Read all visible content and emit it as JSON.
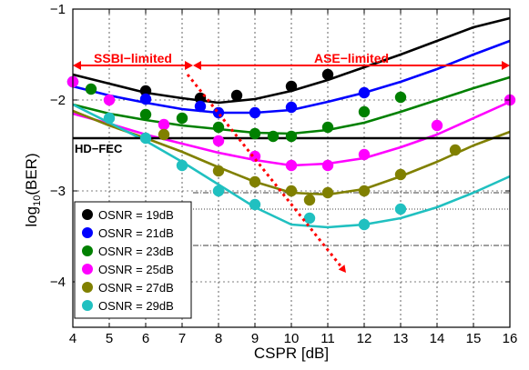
{
  "chart_data": {
    "type": "scatter",
    "xlabel": "CSPR [dB]",
    "ylabel": "log",
    "ylabel_sub": "10",
    "ylabel_tail": "(BER)",
    "xlim": [
      4,
      16
    ],
    "ylim": [
      -4.5,
      -1
    ],
    "x_ticks": [
      4,
      5,
      6,
      7,
      8,
      9,
      10,
      11,
      12,
      13,
      14,
      15,
      16
    ],
    "y_ticks": [
      -4,
      -3,
      -2,
      -1
    ],
    "y_tick_labels": [
      "−4",
      "−3",
      "−2",
      "−1"
    ],
    "grid": true,
    "legend_position": "lower-left",
    "hd_fec": {
      "label": "HD−FEC",
      "y": -2.42,
      "color": "#000000"
    },
    "regions": [
      {
        "label": "SSBI−limited",
        "x_start": 4,
        "x_end": 7.3,
        "y": -1.62,
        "color": "#ff0000"
      },
      {
        "label": "ASE−limited",
        "x_start": 7.3,
        "x_end": 16,
        "y": -1.62,
        "color": "#ff0000"
      }
    ],
    "optimum_trend": {
      "color": "#ff0000",
      "x": [
        7.15,
        11.5
      ],
      "y": [
        -1.72,
        -3.9
      ]
    },
    "reference_lines": [
      {
        "style": "dash-dot",
        "y": -2.42,
        "x_start": 7.3,
        "x_end": 16
      },
      {
        "style": "dash-dot",
        "y": -3.02,
        "x_start": 7.3,
        "x_end": 16
      },
      {
        "style": "dash-dot",
        "y": -3.6,
        "x_start": 7.3,
        "x_end": 16
      },
      {
        "style": "dotted",
        "y": -3.2,
        "x_start": 7.3,
        "x_end": 16
      }
    ],
    "series": [
      {
        "name": "OSNR = 19dB",
        "color": "#000000",
        "points": {
          "x": [
            6,
            7.5,
            8.5,
            10,
            11
          ],
          "y": [
            -1.9,
            -1.98,
            -1.95,
            -1.85,
            -1.72
          ]
        },
        "fit": {
          "x": [
            4,
            5,
            6,
            7,
            8,
            9,
            10,
            11,
            12,
            13,
            14,
            15,
            16
          ],
          "y": [
            -1.72,
            -1.82,
            -1.92,
            -1.98,
            -2.03,
            -1.99,
            -1.9,
            -1.78,
            -1.64,
            -1.5,
            -1.35,
            -1.2,
            -1.1
          ]
        }
      },
      {
        "name": "OSNR = 21dB",
        "color": "#0000ff",
        "points": {
          "x": [
            4,
            6,
            7.5,
            8,
            9,
            10,
            12
          ],
          "y": [
            -1.8,
            -1.99,
            -2.07,
            -2.14,
            -2.14,
            -2.08,
            -1.92
          ]
        },
        "fit": {
          "x": [
            4,
            5,
            6,
            7,
            8,
            9,
            10,
            11,
            12,
            13,
            14,
            15,
            16
          ],
          "y": [
            -1.85,
            -1.95,
            -2.03,
            -2.1,
            -2.14,
            -2.14,
            -2.11,
            -2.02,
            -1.92,
            -1.8,
            -1.66,
            -1.5,
            -1.35
          ]
        }
      },
      {
        "name": "OSNR = 23dB",
        "color": "#008000",
        "points": {
          "x": [
            4.5,
            6,
            7,
            8,
            9,
            9.5,
            10,
            11,
            12,
            13
          ],
          "y": [
            -1.88,
            -2.16,
            -2.2,
            -2.3,
            -2.37,
            -2.4,
            -2.4,
            -2.3,
            -2.13,
            -1.97
          ]
        },
        "fit": {
          "x": [
            4,
            5,
            6,
            7,
            8,
            9,
            10,
            11,
            12,
            13,
            14,
            15,
            16
          ],
          "y": [
            -2.05,
            -2.15,
            -2.22,
            -2.28,
            -2.32,
            -2.36,
            -2.37,
            -2.33,
            -2.25,
            -2.13,
            -2.0,
            -1.87,
            -1.75
          ]
        }
      },
      {
        "name": "OSNR = 25dB",
        "color": "#ff00ff",
        "points": {
          "x": [
            4,
            5,
            6.5,
            8,
            9,
            10,
            11,
            12,
            14,
            16
          ],
          "y": [
            -1.8,
            -2.0,
            -2.27,
            -2.45,
            -2.62,
            -2.72,
            -2.72,
            -2.6,
            -2.28,
            -2.0
          ]
        },
        "fit": {
          "x": [
            4,
            5,
            6,
            7,
            8,
            9,
            10,
            11,
            12,
            13,
            14,
            15,
            16
          ],
          "y": [
            -2.15,
            -2.26,
            -2.38,
            -2.48,
            -2.58,
            -2.66,
            -2.72,
            -2.7,
            -2.64,
            -2.52,
            -2.38,
            -2.2,
            -2.02
          ]
        }
      },
      {
        "name": "OSNR = 27dB",
        "color": "#808000",
        "points": {
          "x": [
            6.5,
            8,
            9,
            10,
            10.5,
            11,
            12,
            13,
            14.5
          ],
          "y": [
            -2.38,
            -2.78,
            -2.9,
            -3.0,
            -3.1,
            -3.02,
            -3.0,
            -2.82,
            -2.55
          ]
        },
        "fit": {
          "x": [
            4,
            5,
            6,
            7,
            8,
            9,
            10,
            11,
            12,
            13,
            14,
            15,
            16
          ],
          "y": [
            -2.12,
            -2.28,
            -2.42,
            -2.57,
            -2.74,
            -2.9,
            -3.02,
            -3.04,
            -2.98,
            -2.84,
            -2.68,
            -2.5,
            -2.35
          ]
        }
      },
      {
        "name": "OSNR = 29dB",
        "color": "#20c0c0",
        "points": {
          "x": [
            5,
            6,
            7,
            8,
            9,
            10.5,
            12,
            13
          ],
          "y": [
            -2.2,
            -2.42,
            -2.72,
            -3.0,
            -3.15,
            -3.3,
            -3.37,
            -3.2
          ]
        },
        "fit": {
          "x": [
            4,
            5,
            6,
            7,
            8,
            9,
            10,
            11,
            12,
            13,
            14,
            15,
            16
          ],
          "y": [
            -2.05,
            -2.25,
            -2.45,
            -2.68,
            -2.93,
            -3.18,
            -3.37,
            -3.4,
            -3.37,
            -3.3,
            -3.18,
            -3.02,
            -2.84
          ]
        }
      }
    ]
  }
}
